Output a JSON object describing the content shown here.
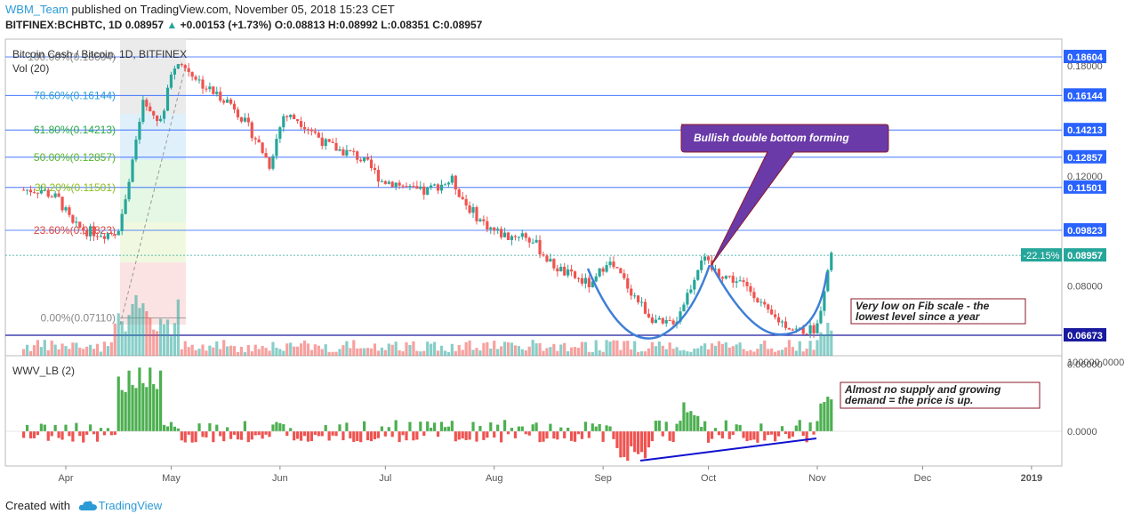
{
  "header": {
    "user": "WBM_Team",
    "published": "published on TradingView.com, November 05, 2018 15:23 CET",
    "symbol": "BITFINEX:BCHBTC, 1D",
    "last": "0.08957",
    "change": "+0.00153 (+1.73%)",
    "o": "O:0.08813",
    "h": "H:0.08992",
    "l": "L:0.08351",
    "c": "C:0.08957"
  },
  "footer": {
    "created": "Created with",
    "brand": "TradingView"
  },
  "chart_data": {
    "type": "candlestick",
    "title": "Bitcoin Cash / Bitcoin, 1D, BITFINEX",
    "volume_label": "Vol (20)",
    "indicator_label": "WWV_LB (2)",
    "x_ticks": [
      "Apr",
      "May",
      "Jun",
      "Jul",
      "Aug",
      "Sep",
      "Oct",
      "Nov",
      "Dec",
      "2019"
    ],
    "price_ticks": [
      "0.18000",
      "0.12000",
      "0.08000",
      "0.06000"
    ],
    "indicator_ticks": [
      "100000.0000",
      "0.0000"
    ],
    "ylim": [
      0.058,
      0.188
    ],
    "price_series": [
      [
        "2018-03-20",
        0.114
      ],
      [
        "2018-03-25",
        0.114
      ],
      [
        "2018-03-30",
        0.11
      ],
      [
        "2018-04-03",
        0.1
      ],
      [
        "2018-04-07",
        0.098
      ],
      [
        "2018-04-12",
        0.097
      ],
      [
        "2018-04-16",
        0.098
      ],
      [
        "2018-04-18",
        0.112
      ],
      [
        "2018-04-21",
        0.135
      ],
      [
        "2018-04-23",
        0.158
      ],
      [
        "2018-04-25",
        0.15
      ],
      [
        "2018-04-27",
        0.148
      ],
      [
        "2018-04-29",
        0.152
      ],
      [
        "2018-05-01",
        0.175
      ],
      [
        "2018-05-03",
        0.182
      ],
      [
        "2018-05-07",
        0.175
      ],
      [
        "2018-05-10",
        0.168
      ],
      [
        "2018-05-13",
        0.163
      ],
      [
        "2018-05-16",
        0.16
      ],
      [
        "2018-05-19",
        0.155
      ],
      [
        "2018-05-22",
        0.146
      ],
      [
        "2018-05-25",
        0.138
      ],
      [
        "2018-05-29",
        0.125
      ],
      [
        "2018-06-02",
        0.15
      ],
      [
        "2018-06-06",
        0.148
      ],
      [
        "2018-06-10",
        0.142
      ],
      [
        "2018-06-14",
        0.135
      ],
      [
        "2018-06-18",
        0.132
      ],
      [
        "2018-06-22",
        0.13
      ],
      [
        "2018-06-26",
        0.125
      ],
      [
        "2018-06-30",
        0.118
      ],
      [
        "2018-07-04",
        0.117
      ],
      [
        "2018-07-08",
        0.114
      ],
      [
        "2018-07-12",
        0.113
      ],
      [
        "2018-07-16",
        0.116
      ],
      [
        "2018-07-20",
        0.118
      ],
      [
        "2018-07-24",
        0.108
      ],
      [
        "2018-07-28",
        0.102
      ],
      [
        "2018-08-01",
        0.098
      ],
      [
        "2018-08-05",
        0.096
      ],
      [
        "2018-08-09",
        0.097
      ],
      [
        "2018-08-13",
        0.093
      ],
      [
        "2018-08-17",
        0.087
      ],
      [
        "2018-08-21",
        0.084
      ],
      [
        "2018-08-25",
        0.082
      ],
      [
        "2018-08-29",
        0.08
      ],
      [
        "2018-09-02",
        0.088
      ],
      [
        "2018-09-06",
        0.083
      ],
      [
        "2018-09-10",
        0.077
      ],
      [
        "2018-09-14",
        0.072
      ],
      [
        "2018-09-18",
        0.069
      ],
      [
        "2018-09-22",
        0.071
      ],
      [
        "2018-09-26",
        0.08
      ],
      [
        "2018-09-29",
        0.089
      ],
      [
        "2018-10-02",
        0.085
      ],
      [
        "2018-10-06",
        0.083
      ],
      [
        "2018-10-10",
        0.081
      ],
      [
        "2018-10-14",
        0.078
      ],
      [
        "2018-10-18",
        0.072
      ],
      [
        "2018-10-22",
        0.07
      ],
      [
        "2018-10-26",
        0.068
      ],
      [
        "2018-10-30",
        0.068
      ],
      [
        "2018-11-01",
        0.069
      ],
      [
        "2018-11-03",
        0.08
      ],
      [
        "2018-11-05",
        0.0896
      ]
    ],
    "fib_levels": [
      {
        "label": "100.00%(0.18604)",
        "value": 0.18604,
        "color": "#888888",
        "tag": "0.18604"
      },
      {
        "label": "78.60%(0.16144)",
        "value": 0.16144,
        "color": "#2b9bd6",
        "tag": "0.16144"
      },
      {
        "label": "61.80%(0.14213)",
        "value": 0.14213,
        "color": "#27a844",
        "tag": "0.14213"
      },
      {
        "label": "50.00%(0.12857)",
        "value": 0.12857,
        "color": "#55b72a",
        "tag": "0.12857"
      },
      {
        "label": "38.20%(0.11501)",
        "value": 0.11501,
        "color": "#8fbf18",
        "tag": "0.11501"
      },
      {
        "label": "23.60%(0.09823)",
        "value": 0.09823,
        "color": "#d9433c",
        "tag": "0.09823"
      },
      {
        "label": "0.00%(0.07110)",
        "value": 0.0711,
        "color": "#888888",
        "tag": ""
      }
    ],
    "support": {
      "value": 0.06673,
      "tag": "0.06673"
    },
    "current": {
      "value": 0.08957,
      "tag": "0.08957",
      "pct": "-22.15%"
    },
    "annotations": {
      "callout": "Bullish double bottom forming",
      "note1": [
        "Very low on Fib scale - the",
        "lowest level since a year"
      ],
      "note2": [
        "Almost no supply and growing",
        "demand = the price is up."
      ]
    },
    "colors": {
      "up": "#26a69a",
      "down": "#ef5350",
      "fibline": "#2962ff",
      "support": "#1a1aa0",
      "arc": "#3f7fd6",
      "callout": "#6a3aa8"
    }
  }
}
